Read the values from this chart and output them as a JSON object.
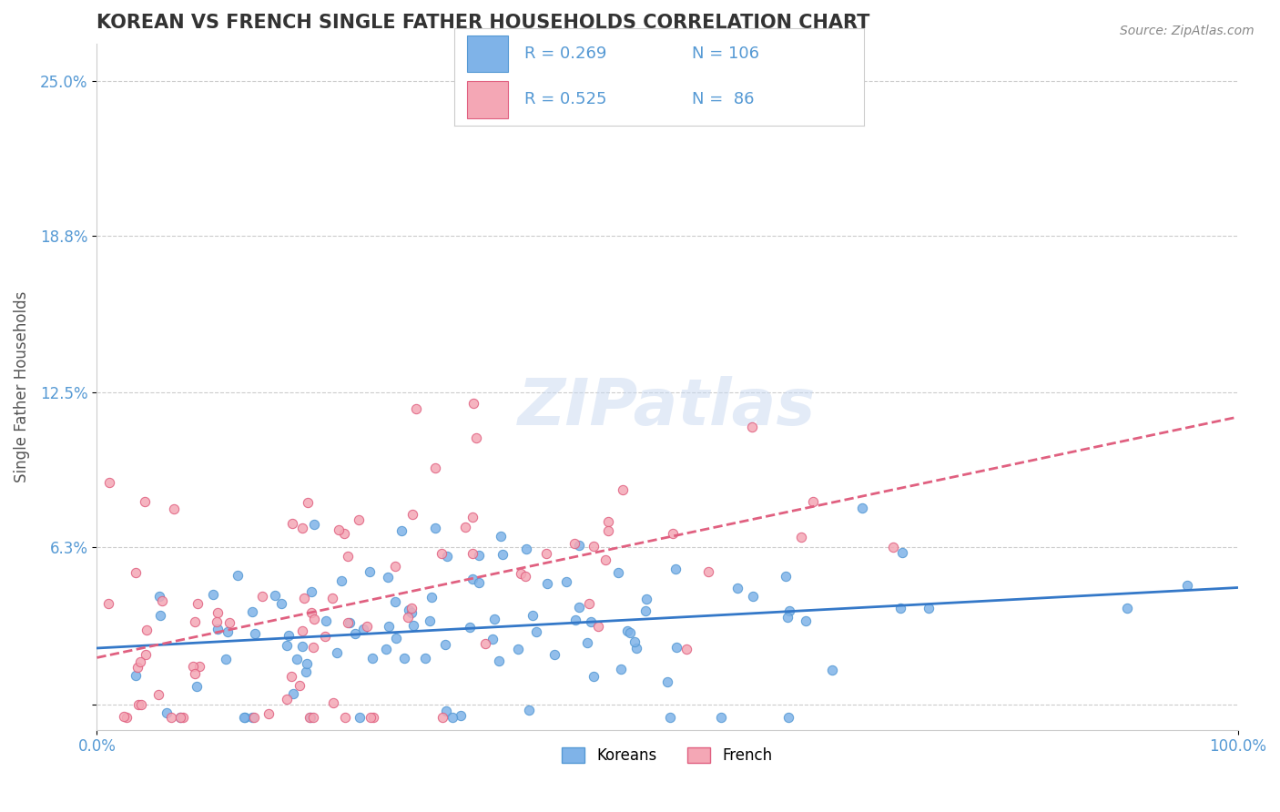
{
  "title": "KOREAN VS FRENCH SINGLE FATHER HOUSEHOLDS CORRELATION CHART",
  "source_text": "Source: ZipAtlas.com",
  "ylabel": "Single Father Households",
  "xlabel": "",
  "xlim": [
    0.0,
    1.0
  ],
  "ylim": [
    -0.01,
    0.265
  ],
  "yticks": [
    0.0,
    0.063,
    0.125,
    0.188,
    0.25
  ],
  "ytick_labels": [
    "",
    "6.3%",
    "12.5%",
    "18.8%",
    "25.0%"
  ],
  "xtick_labels": [
    "0.0%",
    "100.0%"
  ],
  "koreans_color": "#7fb3e8",
  "koreans_edge": "#5599d4",
  "french_color": "#f4a7b5",
  "french_edge": "#e06080",
  "line_korean_color": "#3478c8",
  "line_french_color": "#e06080",
  "R_korean": 0.269,
  "N_korean": 106,
  "R_french": 0.525,
  "N_french": 86,
  "background_color": "#ffffff",
  "grid_color": "#cccccc",
  "title_fontsize": 15,
  "label_color": "#5599d4",
  "watermark": "ZIPatlas",
  "seed_korean": 42,
  "seed_french": 123
}
